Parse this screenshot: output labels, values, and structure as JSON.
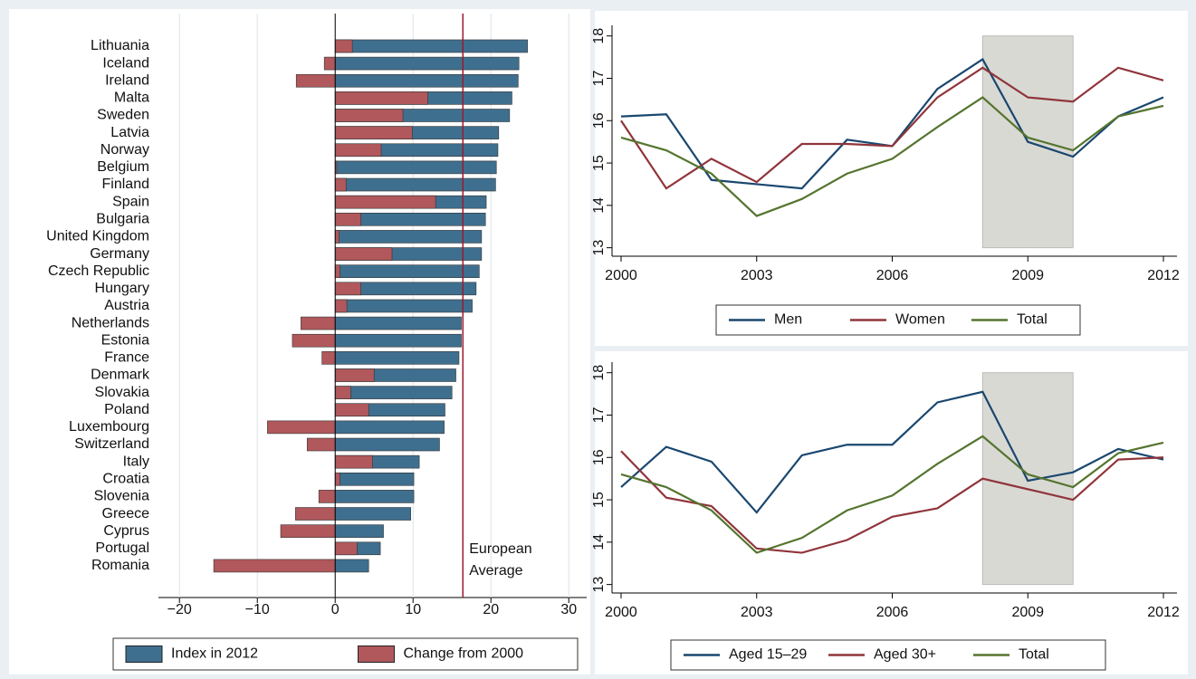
{
  "chart_data": [
    {
      "type": "bar",
      "orientation": "horizontal",
      "categories": [
        "Lithuania",
        "Iceland",
        "Ireland",
        "Malta",
        "Sweden",
        "Latvia",
        "Norway",
        "Belgium",
        "Finland",
        "Spain",
        "Bulgaria",
        "United Kingdom",
        "Germany",
        "Czech Republic",
        "Hungary",
        "Austria",
        "Netherlands",
        "Estonia",
        "France",
        "Denmark",
        "Slovakia",
        "Poland",
        "Luxembourg",
        "Switzerland",
        "Italy",
        "Croatia",
        "Slovenia",
        "Greece",
        "Cyprus",
        "Portugal",
        "Romania"
      ],
      "series": [
        {
          "name": "Index in 2012",
          "color": "#3f6f8f",
          "values": [
            24.7,
            23.6,
            23.5,
            22.7,
            22.4,
            21.0,
            20.9,
            20.7,
            20.6,
            19.4,
            19.3,
            18.8,
            18.8,
            18.5,
            18.1,
            17.6,
            16.2,
            16.2,
            15.9,
            15.5,
            15.0,
            14.1,
            14.0,
            13.4,
            10.8,
            10.1,
            10.1,
            9.7,
            6.2,
            5.8,
            4.3
          ]
        },
        {
          "name": "Change from 2000",
          "color": "#b0585c",
          "values": [
            2.2,
            -1.4,
            -5.0,
            11.9,
            8.7,
            9.9,
            5.9,
            0.2,
            1.4,
            12.9,
            3.3,
            0.5,
            7.3,
            0.6,
            3.3,
            1.5,
            -4.4,
            -5.5,
            -1.7,
            5.0,
            2.0,
            4.3,
            -8.7,
            -3.6,
            4.8,
            0.6,
            -2.1,
            -5.1,
            -7.0,
            2.8,
            -15.6
          ]
        }
      ],
      "xlim": [
        -22.7,
        32.3
      ],
      "xticks": [
        {
          "value": -20,
          "label": "−20"
        },
        {
          "value": -10,
          "label": "−10"
        },
        0,
        10,
        20,
        30
      ],
      "grid": true,
      "reference_line": {
        "value": 16.4,
        "color": "#9b1b30",
        "label_lines": [
          "European",
          "Average"
        ]
      }
    },
    {
      "type": "line",
      "x": [
        2000,
        2001,
        2002,
        2003,
        2004,
        2005,
        2006,
        2007,
        2008,
        2009,
        2010,
        2011,
        2012
      ],
      "series": [
        {
          "name": "Men",
          "color": "#1a476f",
          "values": [
            16.1,
            16.15,
            14.6,
            14.5,
            14.4,
            15.55,
            15.4,
            16.75,
            17.45,
            15.5,
            15.15,
            16.1,
            16.55
          ]
        },
        {
          "name": "Women",
          "color": "#90353b",
          "values": [
            16.0,
            14.4,
            15.1,
            14.55,
            15.45,
            15.45,
            15.4,
            16.55,
            17.25,
            16.55,
            16.45,
            17.25,
            16.95
          ]
        },
        {
          "name": "Total",
          "color": "#55752f",
          "values": [
            15.6,
            15.3,
            14.75,
            13.75,
            14.15,
            14.75,
            15.1,
            15.85,
            16.55,
            15.6,
            15.3,
            16.1,
            16.35
          ]
        }
      ],
      "xlim": [
        1999.8,
        2012.3
      ],
      "xticks": [
        2000,
        2003,
        2006,
        2009,
        2012
      ],
      "ylim": [
        12.8,
        18.25
      ],
      "yticks": [
        13,
        14,
        15,
        16,
        17,
        18
      ],
      "shade": [
        2008,
        2010
      ]
    },
    {
      "type": "line",
      "x": [
        2000,
        2001,
        2002,
        2003,
        2004,
        2005,
        2006,
        2007,
        2008,
        2009,
        2010,
        2011,
        2012
      ],
      "series": [
        {
          "name": "Aged 15–29",
          "color": "#1a476f",
          "values": [
            15.3,
            16.25,
            15.9,
            14.7,
            16.05,
            16.3,
            16.3,
            17.3,
            17.55,
            15.45,
            15.65,
            16.2,
            15.95
          ]
        },
        {
          "name": "Aged 30+",
          "color": "#90353b",
          "values": [
            16.15,
            15.05,
            14.85,
            13.85,
            13.75,
            14.05,
            14.6,
            14.8,
            15.5,
            15.25,
            15.0,
            15.95,
            16.0
          ]
        },
        {
          "name": "Total",
          "color": "#55752f",
          "values": [
            15.6,
            15.3,
            14.75,
            13.75,
            14.1,
            14.75,
            15.1,
            15.85,
            16.5,
            15.6,
            15.3,
            16.1,
            16.35
          ]
        }
      ],
      "xlim": [
        1999.8,
        2012.3
      ],
      "xticks": [
        2000,
        2003,
        2006,
        2009,
        2012
      ],
      "ylim": [
        12.8,
        18.25
      ],
      "yticks": [
        13,
        14,
        15,
        16,
        17,
        18
      ],
      "shade": [
        2008,
        2010
      ]
    }
  ]
}
